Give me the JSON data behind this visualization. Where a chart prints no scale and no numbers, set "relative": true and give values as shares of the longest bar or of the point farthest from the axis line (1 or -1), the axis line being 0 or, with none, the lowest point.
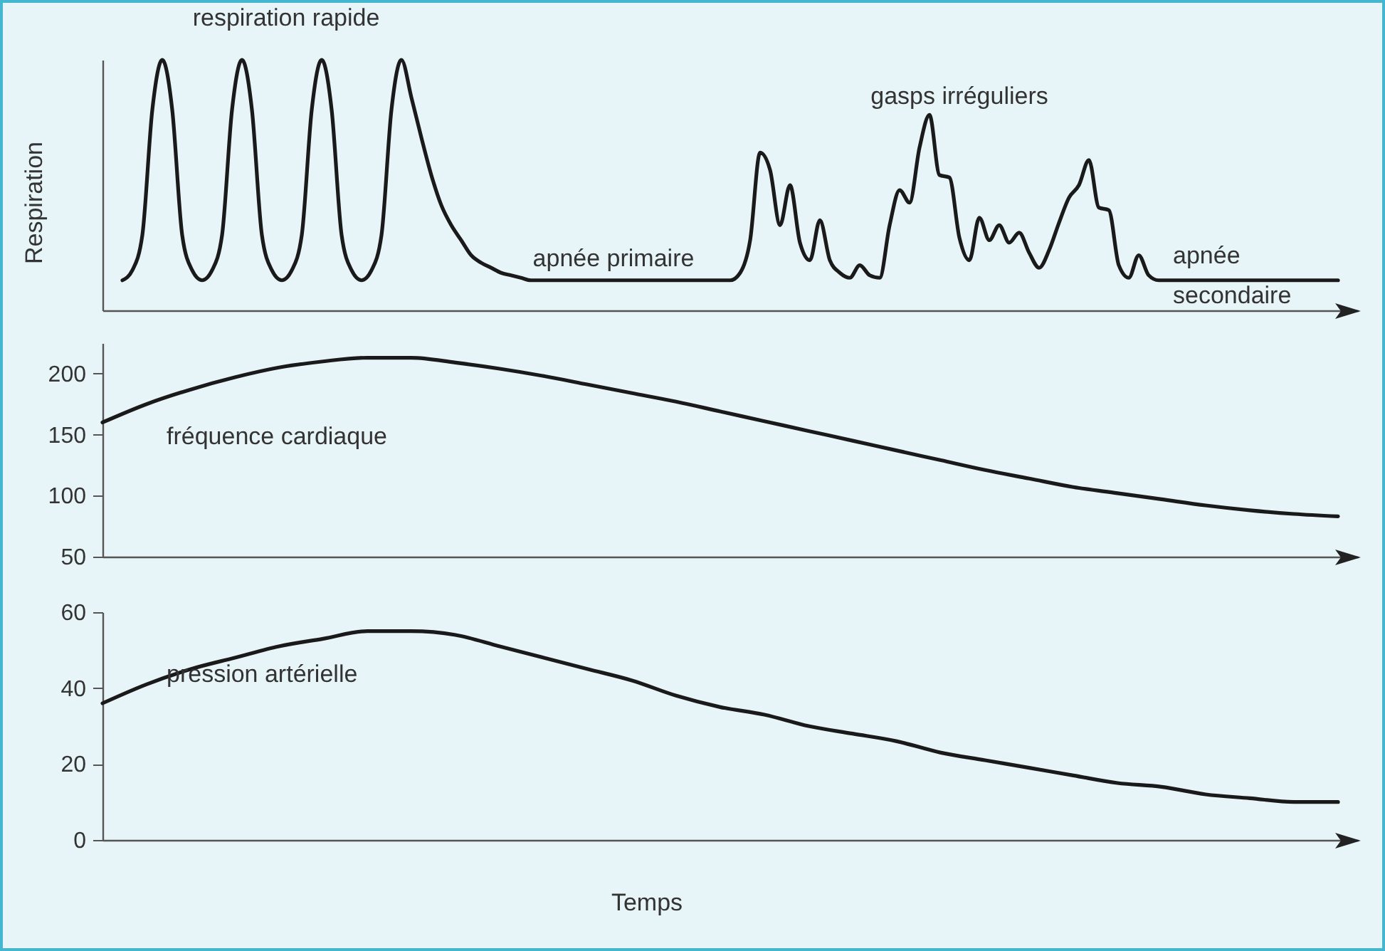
{
  "chart_data": [
    {
      "type": "line",
      "relative": true,
      "ylabel": "Respiration",
      "tick_labels": false,
      "color": "#1a1a1a",
      "annotations": [
        "respiration rapide",
        "apnée primaire",
        "gasps irréguliers",
        "apnée\nsecondaire"
      ],
      "categories": [
        null,
        null,
        null,
        null,
        null,
        null,
        null,
        null,
        null,
        null,
        null,
        null,
        null,
        null,
        null,
        null,
        null,
        null,
        null,
        null,
        null,
        null,
        null,
        null,
        null,
        null,
        null,
        null,
        null,
        null,
        null,
        null,
        null,
        null,
        null,
        null,
        null,
        null,
        null,
        null,
        null,
        null,
        null,
        null,
        null,
        null,
        null,
        null,
        null,
        null,
        null,
        null,
        null,
        null,
        null,
        null,
        null,
        null,
        null,
        null,
        null,
        null,
        null,
        null,
        null,
        null,
        null,
        null,
        null,
        null,
        null,
        null,
        null,
        null,
        null,
        null,
        null,
        null,
        null,
        null,
        null,
        null,
        null,
        null,
        null,
        null,
        null,
        null,
        null,
        null,
        null,
        null,
        null,
        null,
        null,
        null,
        null,
        null,
        null,
        null,
        null,
        null,
        null,
        null,
        null,
        null,
        null,
        null,
        null,
        null,
        null,
        null,
        null,
        null,
        null,
        null,
        null,
        null,
        null,
        null,
        null,
        null,
        null
      ],
      "values": [
        0.12,
        0.16,
        0.3,
        0.8,
        1,
        0.8,
        0.3,
        0.16,
        0.12,
        0.16,
        0.3,
        0.8,
        1,
        0.8,
        0.3,
        0.16,
        0.12,
        0.16,
        0.3,
        0.8,
        1,
        0.8,
        0.3,
        0.16,
        0.12,
        0.16,
        0.3,
        0.8,
        1,
        0.85,
        0.69,
        0.54,
        0.42,
        0.34,
        0.28,
        0.22,
        0.19,
        0.17,
        0.15,
        0.14,
        0.13,
        0.12,
        0.12,
        0.12,
        0.12,
        0.12,
        0.12,
        0.12,
        0.12,
        0.12,
        0.12,
        0.12,
        0.12,
        0.12,
        0.12,
        0.12,
        0.12,
        0.12,
        0.12,
        0.12,
        0.12,
        0.12,
        0.15,
        0.28,
        0.63,
        0.56,
        0.34,
        0.5,
        0.27,
        0.2,
        0.36,
        0.2,
        0.15,
        0.13,
        0.18,
        0.14,
        0.13,
        0.34,
        0.48,
        0.43,
        0.65,
        0.78,
        0.54,
        0.53,
        0.29,
        0.2,
        0.37,
        0.28,
        0.34,
        0.27,
        0.31,
        0.23,
        0.17,
        0.24,
        0.35,
        0.45,
        0.5,
        0.6,
        0.41,
        0.4,
        0.18,
        0.13,
        0.22,
        0.14,
        0.12,
        0.12,
        0.12,
        0.12,
        0.12,
        0.12,
        0.12,
        0.12,
        0.12,
        0.12,
        0.12,
        0.12,
        0.12,
        0.12,
        0.12,
        0.12,
        0.12,
        0.12,
        0.12
      ]
    },
    {
      "type": "line",
      "tick_labels": "y",
      "ylim": [
        50,
        225
      ],
      "yticks": [
        50,
        100,
        150,
        200
      ],
      "categories": [
        null,
        null,
        null,
        null,
        null,
        null,
        null,
        null,
        null,
        null,
        null,
        null,
        null,
        null,
        null,
        null,
        null,
        null,
        null,
        null,
        null,
        null,
        null,
        null,
        null,
        null,
        null,
        null,
        null
      ],
      "series": [
        {
          "name": "fréquence cardiaque",
          "color": "#1a1a1a",
          "values": [
            160,
            175,
            187,
            197,
            205,
            210,
            213,
            213,
            209,
            204,
            198,
            191,
            184,
            177,
            169,
            161,
            153,
            145,
            137,
            129,
            121,
            114,
            107,
            102,
            97,
            92,
            88,
            85,
            83
          ]
        }
      ]
    },
    {
      "type": "line",
      "tick_labels": "y",
      "xlabel": "Temps",
      "ylim": [
        0,
        60
      ],
      "yticks": [
        0,
        20,
        40,
        60
      ],
      "categories": [
        null,
        null,
        null,
        null,
        null,
        null,
        null,
        null,
        null,
        null,
        null,
        null,
        null,
        null,
        null,
        null,
        null,
        null,
        null,
        null,
        null,
        null,
        null,
        null,
        null,
        null,
        null,
        null,
        null
      ],
      "series": [
        {
          "name": "pression artérielle",
          "color": "#1a1a1a",
          "values": [
            36,
            41,
            45,
            48,
            51,
            53,
            55,
            55,
            54,
            51,
            48,
            45,
            42,
            38,
            35,
            33,
            30,
            28,
            26,
            23,
            21,
            19,
            17,
            15,
            14,
            12,
            11,
            10,
            10
          ]
        }
      ]
    }
  ]
}
